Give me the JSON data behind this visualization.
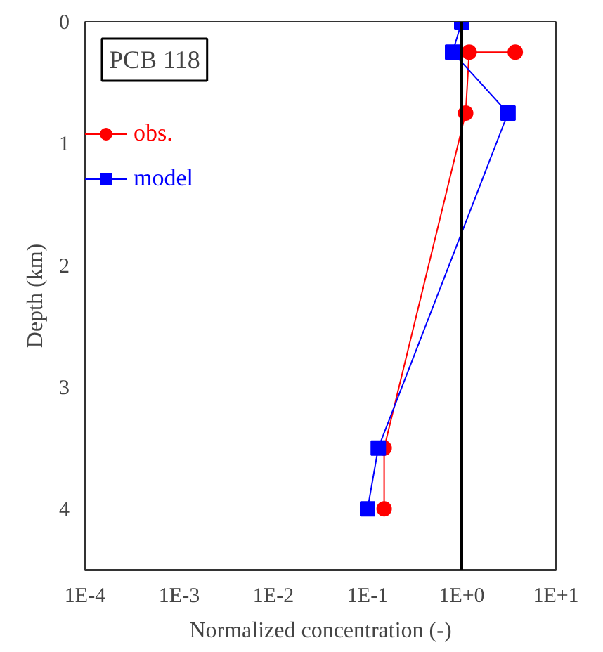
{
  "chart_data": {
    "type": "line",
    "xlabel": "Normalized concentration (-)",
    "ylabel": "Depth (km)",
    "log": "x",
    "xlim": [
      0.0001,
      10
    ],
    "ylim": [
      4.5,
      0
    ],
    "xticks": [
      {
        "value": 0.0001,
        "label": "1E-4"
      },
      {
        "value": 0.001,
        "label": "1E-3"
      },
      {
        "value": 0.01,
        "label": "1E-2"
      },
      {
        "value": 0.1,
        "label": "1E-1"
      },
      {
        "value": 1,
        "label": "1E+0"
      },
      {
        "value": 10,
        "label": "1E+1"
      }
    ],
    "yticks": [
      0,
      1,
      2,
      3,
      4
    ],
    "grid": false,
    "legend": "top left",
    "annotations": [
      "PCB 118"
    ],
    "ref_lines": [
      {
        "axis": "x",
        "value": 1,
        "color": "#000000"
      }
    ],
    "series": [
      {
        "name": "obs.",
        "color": "#ff0000",
        "marker": "circle",
        "x": [
          3.7,
          1.2,
          1.1,
          0.15,
          0.15
        ],
        "values": [
          0.25,
          0.25,
          0.75,
          3.5,
          4
        ]
      },
      {
        "name": "model",
        "color": "#0000ff",
        "marker": "square",
        "x": [
          1.0,
          0.8,
          3.1,
          0.13,
          0.1
        ],
        "values": [
          0,
          0.25,
          0.75,
          3.5,
          4
        ]
      }
    ]
  }
}
